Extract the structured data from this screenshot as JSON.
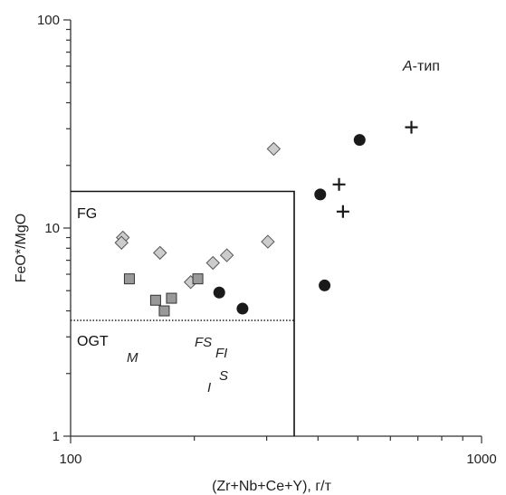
{
  "chart_data": {
    "type": "scatter",
    "xscale": "log",
    "yscale": "log",
    "xlim": [
      100,
      1000
    ],
    "ylim": [
      1,
      100
    ],
    "xlabel": "(Zr+Nb+Ce+Y), г/т",
    "ylabel": "FeO*/MgO",
    "x_tick_labels": [
      "100",
      "1000"
    ],
    "y_tick_labels": [
      "1",
      "10",
      "100"
    ],
    "regions": [
      {
        "label": "FG",
        "x": [
          100,
          350
        ],
        "y": [
          3.6,
          15
        ]
      },
      {
        "label": "OGT",
        "x": [
          100,
          350
        ],
        "y": [
          1,
          3.6
        ]
      },
      {
        "label": "A-тип",
        "label_prefix": "A",
        "label_suffix": "-тип"
      }
    ],
    "boundaries": {
      "fg_box": {
        "x_max": 350,
        "y_max": 15,
        "style": "solid"
      },
      "fg_ogt_divider": {
        "y": 3.6,
        "style": "dotted"
      }
    },
    "type_labels": [
      {
        "text": "M",
        "x": 142,
        "y": 2.6
      },
      {
        "text": "FS",
        "x": 220,
        "y": 2.9
      },
      {
        "text": "FI",
        "x": 250,
        "y": 2.55
      },
      {
        "text": "I",
        "x": 222,
        "y": 1.8
      },
      {
        "text": "S",
        "x": 235,
        "y": 2.0
      }
    ],
    "series": [
      {
        "marker": "diamond",
        "color": "#cccccc",
        "points": [
          {
            "x": 134,
            "y": 9.0
          },
          {
            "x": 133,
            "y": 8.5
          },
          {
            "x": 165,
            "y": 7.6
          },
          {
            "x": 196,
            "y": 5.5
          },
          {
            "x": 222,
            "y": 6.8
          },
          {
            "x": 240,
            "y": 7.4
          },
          {
            "x": 302,
            "y": 8.6
          },
          {
            "x": 312,
            "y": 24
          }
        ]
      },
      {
        "marker": "square",
        "color": "#999999",
        "points": [
          {
            "x": 139,
            "y": 5.7
          },
          {
            "x": 161,
            "y": 4.5
          },
          {
            "x": 169,
            "y": 4.0
          },
          {
            "x": 176,
            "y": 4.6
          },
          {
            "x": 204,
            "y": 5.7
          }
        ]
      },
      {
        "marker": "circle",
        "color": "#1a1a1a",
        "points": [
          {
            "x": 230,
            "y": 4.9
          },
          {
            "x": 262,
            "y": 4.1
          },
          {
            "x": 405,
            "y": 14.5
          },
          {
            "x": 415,
            "y": 5.3
          },
          {
            "x": 505,
            "y": 26.5
          }
        ]
      },
      {
        "marker": "plus",
        "color": "#1a1a1a",
        "points": [
          {
            "x": 450,
            "y": 16.2
          },
          {
            "x": 460,
            "y": 12.0
          },
          {
            "x": 675,
            "y": 30.5
          }
        ]
      }
    ]
  }
}
